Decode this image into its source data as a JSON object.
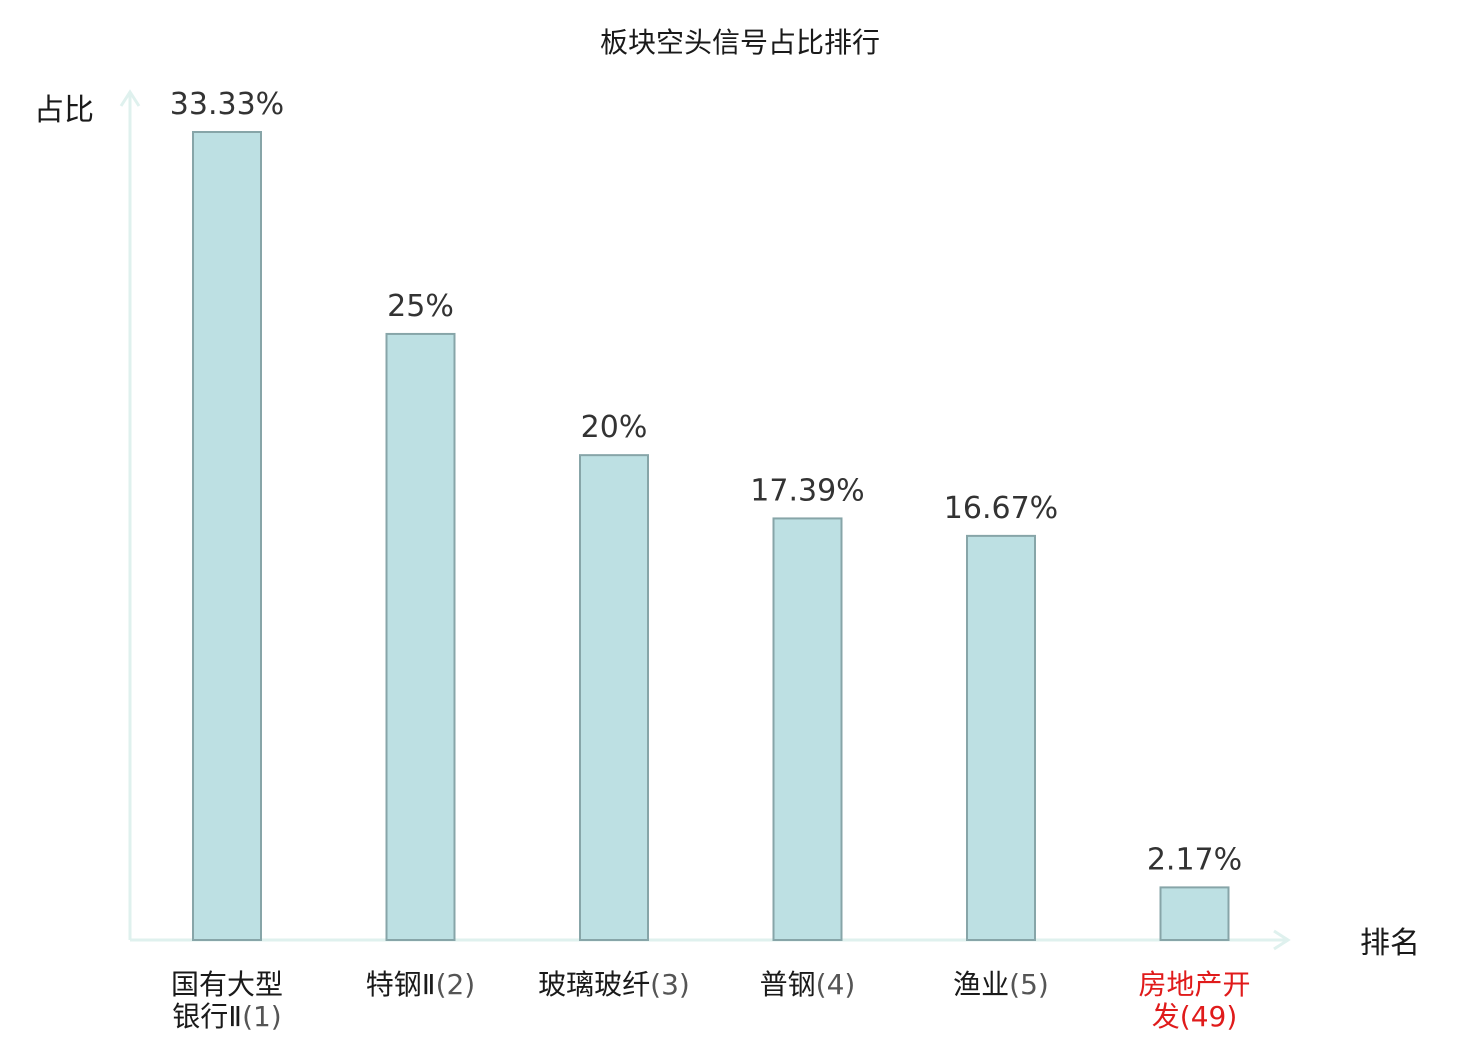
{
  "chart_data": {
    "type": "bar",
    "title": "板块空头信号占比排行",
    "ylabel": "占比",
    "xlabel": "排名",
    "ylim": [
      0,
      35
    ],
    "grid": false,
    "categories": [
      {
        "name_lines": [
          "国有大型",
          "银行Ⅱ"
        ],
        "rank": "(1)",
        "highlight": false
      },
      {
        "name_lines": [
          "特钢Ⅱ"
        ],
        "rank": "(2)",
        "highlight": false
      },
      {
        "name_lines": [
          "玻璃玻纤"
        ],
        "rank": "(3)",
        "highlight": false
      },
      {
        "name_lines": [
          "普钢"
        ],
        "rank": "(4)",
        "highlight": false
      },
      {
        "name_lines": [
          "渔业"
        ],
        "rank": "(5)",
        "highlight": false
      },
      {
        "name_lines": [
          "房地产开",
          "发"
        ],
        "rank": "(49)",
        "highlight": true
      }
    ],
    "values": [
      33.33,
      25,
      20,
      17.39,
      16.67,
      2.17
    ],
    "value_labels": [
      "33.33%",
      "25%",
      "20%",
      "17.39%",
      "16.67%",
      "2.17%"
    ]
  },
  "colors": {
    "bar_fill": "#bde0e3",
    "bar_stroke": "#87a5a8",
    "axis": "#dff1ee",
    "text": "#1a1a1a",
    "value_text": "#333333",
    "highlight": "#e01b1b",
    "rank_text": "#555555"
  }
}
